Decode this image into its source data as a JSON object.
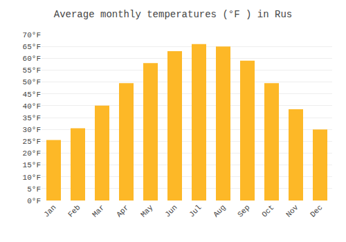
{
  "chart_data": {
    "type": "bar",
    "title": "Average monthly temperatures (°F ) in Rus",
    "categories": [
      "Jan",
      "Feb",
      "Mar",
      "Apr",
      "May",
      "Jun",
      "Jul",
      "Aug",
      "Sep",
      "Oct",
      "Nov",
      "Dec"
    ],
    "values": [
      25.5,
      30.5,
      40.0,
      49.5,
      58.0,
      63.0,
      66.0,
      65.0,
      59.0,
      49.5,
      38.5,
      30.0
    ],
    "color": "#FDB827",
    "ylim": [
      0,
      70
    ],
    "yticks": [
      {
        "value": 0,
        "label": "0°F"
      },
      {
        "value": 5,
        "label": "5°F"
      },
      {
        "value": 10,
        "label": "10°F"
      },
      {
        "value": 15,
        "label": "15°F"
      },
      {
        "value": 20,
        "label": "20°F"
      },
      {
        "value": 25,
        "label": "25°F"
      },
      {
        "value": 30,
        "label": "30°F"
      },
      {
        "value": 35,
        "label": "35°F"
      },
      {
        "value": 40,
        "label": "40°F"
      },
      {
        "value": 45,
        "label": "45°F"
      },
      {
        "value": 50,
        "label": "50°F"
      },
      {
        "value": 55,
        "label": "55°F"
      },
      {
        "value": 60,
        "label": "60°F"
      },
      {
        "value": 65,
        "label": "65°F"
      },
      {
        "value": 70,
        "label": "70°F"
      }
    ],
    "grid": true
  }
}
